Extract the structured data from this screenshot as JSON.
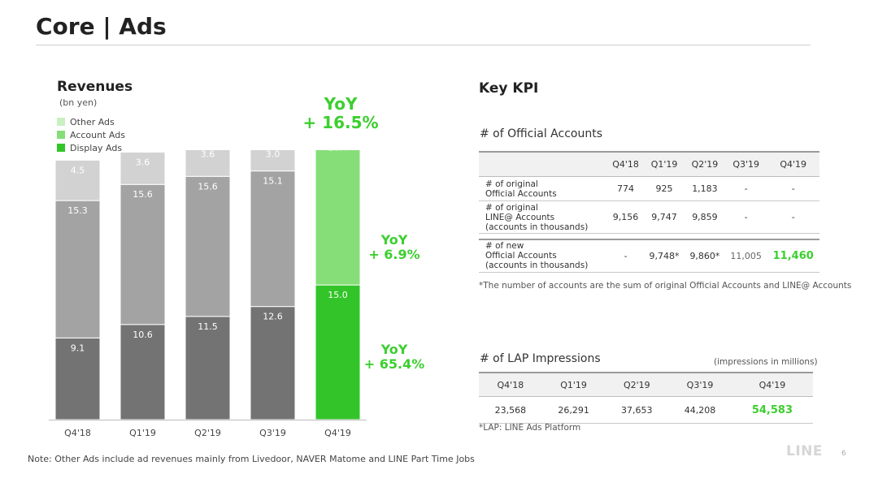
{
  "page": {
    "title": "Core | Ads",
    "footnote": "Note: Other Ads include ad revenues mainly from Livedoor, NAVER Matome and LINE Part Time Jobs",
    "logo_text": "LINE",
    "page_number": "6"
  },
  "revenues": {
    "title": "Revenues",
    "unit": "(bn yen)",
    "legend": [
      "Other Ads",
      "Account Ads",
      "Display Ads"
    ],
    "yoy_total_label": "YoY",
    "yoy_total_value": "+ 16.5%",
    "yoy_account_label": "YoY",
    "yoy_account_value": "+ 6.9%",
    "yoy_display_label": "YoY",
    "yoy_display_value": "+ 65.4%"
  },
  "chart_data": {
    "type": "bar",
    "stacked": true,
    "categories": [
      "Q4'18",
      "Q1'19",
      "Q2'19",
      "Q3'19",
      "Q4'19"
    ],
    "series": [
      {
        "name": "Display Ads",
        "values": [
          9.1,
          10.6,
          11.5,
          12.6,
          15.0
        ]
      },
      {
        "name": "Account Ads",
        "values": [
          15.3,
          15.6,
          15.6,
          15.1,
          16.4
        ]
      },
      {
        "name": "Other Ads",
        "values": [
          4.5,
          3.6,
          3.6,
          3.0,
          2.3
        ]
      }
    ],
    "totals": [
      29.0,
      29.9,
      30.7,
      30.6,
      33.7
    ],
    "ylim": [
      0,
      40
    ],
    "grid": false,
    "legend_position": "top-left",
    "colors": {
      "default": [
        "#737373",
        "#a3a3a3",
        "#d2d2d2"
      ],
      "highlight": [
        "#33c42a",
        "#86de78",
        "#c9f0c0"
      ],
      "highlight_index": 4,
      "total_label": "#555555",
      "total_label_highlight": "#3ccf2f"
    }
  },
  "kpi": {
    "title": "Key KPI",
    "official_accounts": {
      "title": "# of Official Accounts",
      "columns": [
        "Q4'18",
        "Q1'19",
        "Q2'19",
        "Q3'19",
        "Q4'19"
      ],
      "rows": [
        {
          "label_line1": "# of original",
          "label_line2": "Official Accounts",
          "label_line3": "",
          "values": [
            "774",
            "925",
            "1,183",
            "-",
            "-"
          ]
        },
        {
          "label_line1": "# of original",
          "label_line2": "LINE@ Accounts",
          "label_line3": "(accounts in thousands)",
          "values": [
            "9,156",
            "9,747",
            "9,859",
            "-",
            "-"
          ]
        },
        {
          "label_line1": "# of new",
          "label_line2": "Official Accounts",
          "label_line3": "(accounts in thousands)",
          "values": [
            "-",
            "9,748*",
            "9,860*",
            "11,005",
            "11,460"
          ]
        }
      ],
      "note": "*The number of accounts are the sum of original Official Accounts and LINE@ Accounts"
    },
    "lap": {
      "title": "# of LAP Impressions",
      "unit": "(impressions in millions)",
      "columns": [
        "Q4'18",
        "Q1'19",
        "Q2'19",
        "Q3'19",
        "Q4'19"
      ],
      "values": [
        "23,568",
        "26,291",
        "37,653",
        "44,208",
        "54,583"
      ],
      "note": "*LAP: LINE Ads Platform"
    },
    "highlight_color": "#3ccf2f"
  }
}
